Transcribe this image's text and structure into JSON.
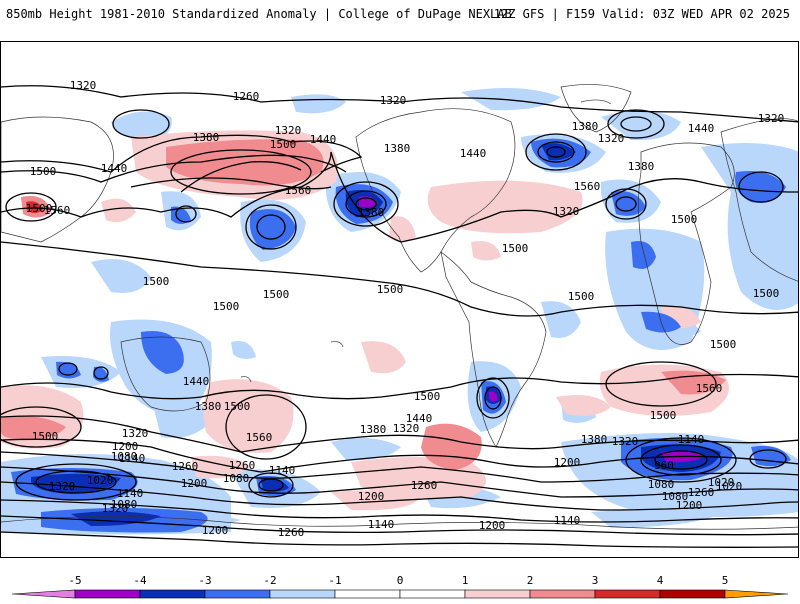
{
  "header": {
    "left_title": "850mb Height 1981-2010 Standardized Anomaly | College of DuPage NEXLAB",
    "right_title": "12Z GFS | F159 Valid: 03Z WED APR 02 2025"
  },
  "colors": {
    "n5": "#e27fe0",
    "n4": "#9b00c4",
    "n3": "#0a2fb5",
    "n2": "#3c6ef0",
    "n1": "#b9d6fb",
    "p1": "#f8cfd0",
    "p2": "#f08b8f",
    "p3": "#d62a2a",
    "p4": "#b00000",
    "p5": "#ff9d00",
    "contour": "#000000"
  },
  "colorbar": {
    "ticks": [
      "-5",
      "-4",
      "-3",
      "-2",
      "-1",
      "0",
      "1",
      "2",
      "3",
      "4",
      "5"
    ]
  },
  "contour_labels": [
    "1320",
    "1260",
    "1320",
    "1380",
    "1320",
    "1440",
    "1380",
    "1440",
    "1380",
    "1380",
    "1320",
    "1440",
    "1320",
    "1500",
    "1440",
    "1500",
    "1560",
    "1500",
    "1560",
    "1380",
    "1320",
    "1560",
    "1500",
    "1500",
    "1500",
    "1500",
    "1500",
    "1500",
    "1500",
    "1500",
    "1500",
    "1440",
    "1380",
    "1500",
    "1500",
    "1560",
    "1500",
    "1440",
    "1560",
    "1380",
    "1320",
    "1380",
    "1320",
    "1320",
    "1200",
    "1140",
    "1260",
    "1140",
    "1080",
    "1200",
    "1200",
    "1080",
    "1020",
    "1140",
    "1260",
    "1200",
    "1320",
    "1200",
    "1260",
    "1260",
    "1140",
    "1200",
    "1140",
    "1140",
    "960",
    "1080",
    "1020",
    "1080",
    "1260",
    "1200",
    "1020",
    "1320",
    "1080",
    "1500"
  ]
}
